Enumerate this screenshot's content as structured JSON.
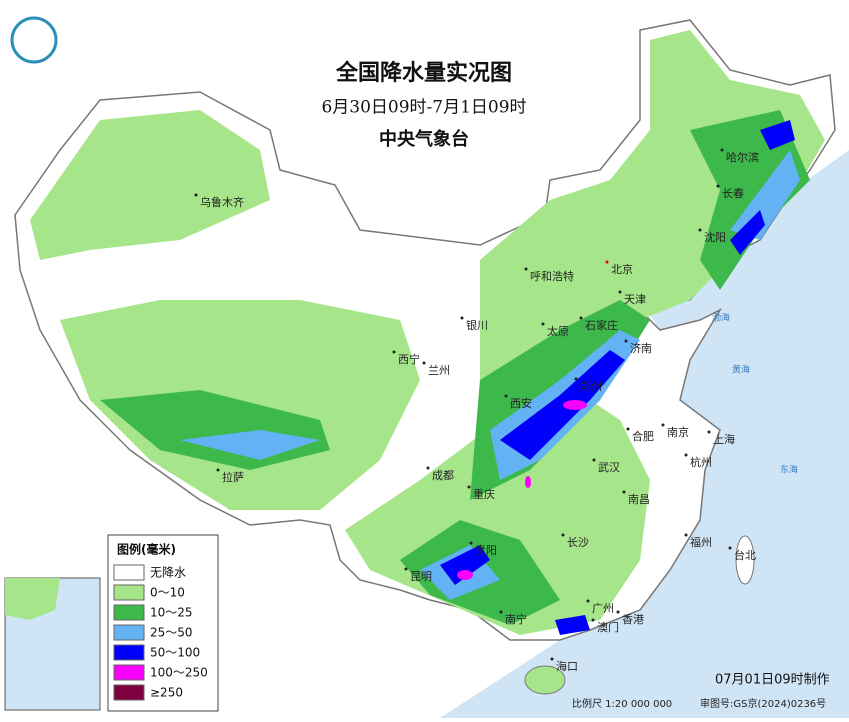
{
  "header": {
    "title": "全国降水量实况图",
    "period": "6月30日09时-7月1日09时",
    "issuer": "中央气象台"
  },
  "legend": {
    "title": "图例(毫米)",
    "items": [
      {
        "label": "无降水",
        "color": "#ffffff"
      },
      {
        "label": "0～10",
        "color": "#a6e58a"
      },
      {
        "label": "10～25",
        "color": "#3db84a"
      },
      {
        "label": "25～50",
        "color": "#62b2f4"
      },
      {
        "label": "50～100",
        "color": "#0000fa"
      },
      {
        "label": "100～250",
        "color": "#fa00fa"
      },
      {
        "label": "≥250",
        "color": "#7d0040"
      }
    ]
  },
  "cities": [
    "乌鲁木齐",
    "哈尔滨",
    "长春",
    "沈阳",
    "北京",
    "呼和浩特",
    "天津",
    "银川",
    "太原",
    "石家庄",
    "济南",
    "西宁",
    "兰州",
    "郑州",
    "西安",
    "合肥",
    "南京",
    "上海",
    "杭州",
    "武汉",
    "成都",
    "拉萨",
    "重庆",
    "南昌",
    "长沙",
    "福州",
    "台北",
    "贵阳",
    "昆明",
    "南宁",
    "广州",
    "澳门",
    "香港",
    "海口"
  ],
  "seas": [
    "渤海",
    "黄海",
    "东海"
  ],
  "footer": {
    "issued": "07月01日09时制作",
    "scale": "比例尺 1:20 000 000",
    "approval": "审图号:GS京(2024)0236号"
  }
}
